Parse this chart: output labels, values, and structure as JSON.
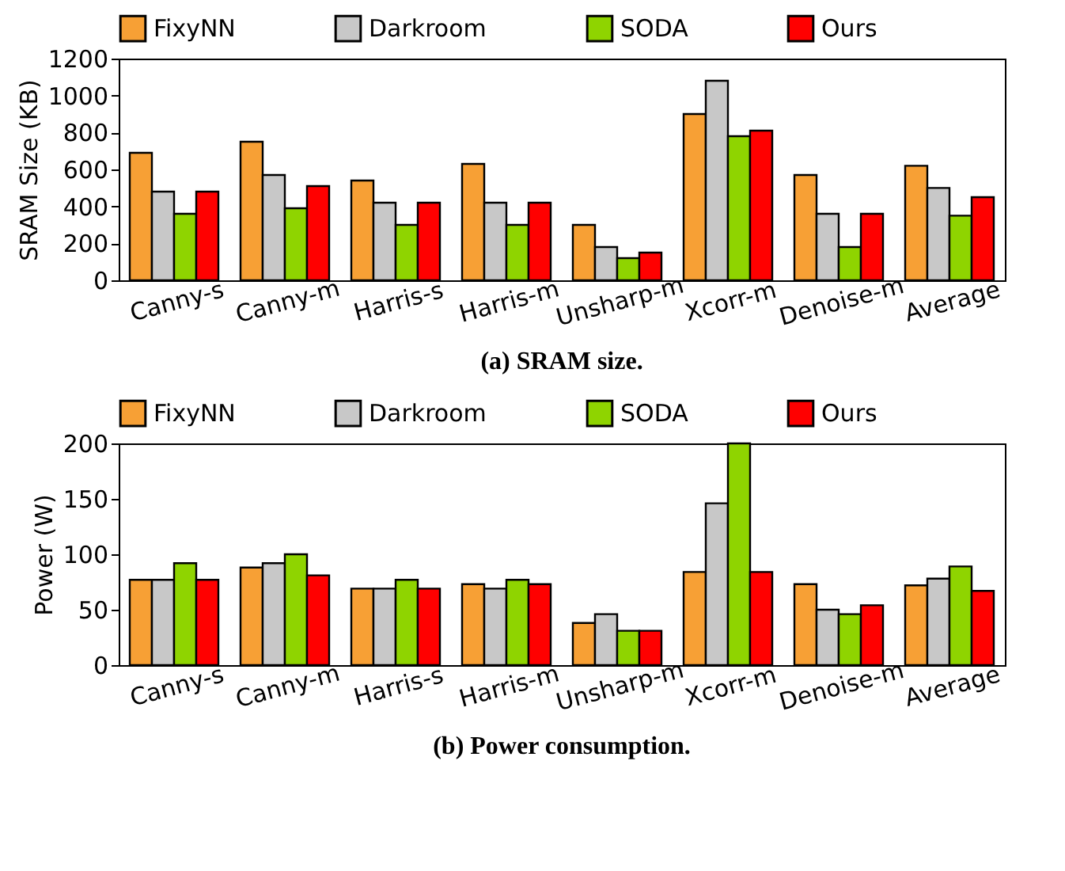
{
  "chart_data": [
    {
      "type": "bar",
      "title": "(a) SRAM size.",
      "ylabel": "SRAM Size (KB)",
      "categories": [
        "Canny-s",
        "Canny-m",
        "Harris-s",
        "Harris-m",
        "Unsharp-m",
        "Xcorr-m",
        "Denoise-m",
        "Average"
      ],
      "series": [
        {
          "name": "FixyNN",
          "color": "#f7a035",
          "values": [
            690,
            750,
            540,
            630,
            300,
            900,
            570,
            620
          ]
        },
        {
          "name": "Darkroom",
          "color": "#c8c8c8",
          "values": [
            480,
            570,
            420,
            420,
            180,
            1080,
            360,
            500
          ]
        },
        {
          "name": "SODA",
          "color": "#8fd400",
          "values": [
            360,
            390,
            300,
            300,
            120,
            780,
            180,
            350
          ]
        },
        {
          "name": "Ours",
          "color": "#ff0000",
          "values": [
            480,
            510,
            420,
            420,
            150,
            810,
            360,
            450
          ]
        }
      ],
      "ylim": [
        0,
        1200
      ],
      "yticks": [
        0,
        200,
        400,
        600,
        800,
        1000,
        1200
      ],
      "legend": "top",
      "grid": false
    },
    {
      "type": "bar",
      "title": "(b) Power consumption.",
      "ylabel": "Power (W)",
      "categories": [
        "Canny-s",
        "Canny-m",
        "Harris-s",
        "Harris-m",
        "Unsharp-m",
        "Xcorr-m",
        "Denoise-m",
        "Average"
      ],
      "series": [
        {
          "name": "FixyNN",
          "color": "#f7a035",
          "values": [
            77,
            88,
            69,
            73,
            38,
            84,
            73,
            72
          ]
        },
        {
          "name": "Darkroom",
          "color": "#c8c8c8",
          "values": [
            77,
            92,
            69,
            69,
            46,
            146,
            50,
            78
          ]
        },
        {
          "name": "SODA",
          "color": "#8fd400",
          "values": [
            92,
            100,
            77,
            77,
            31,
            200,
            46,
            89
          ]
        },
        {
          "name": "Ours",
          "color": "#ff0000",
          "values": [
            77,
            81,
            69,
            73,
            31,
            84,
            54,
            67
          ]
        }
      ],
      "ylim": [
        0,
        200
      ],
      "yticks": [
        0,
        50,
        100,
        150,
        200
      ],
      "legend": "top",
      "grid": false
    }
  ]
}
